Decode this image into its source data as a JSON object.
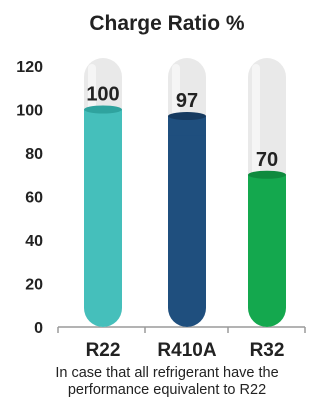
{
  "chart_data": {
    "type": "bar",
    "title": "Charge Ratio %",
    "categories": [
      "R22",
      "R410A",
      "R32"
    ],
    "values": [
      100,
      97,
      70
    ],
    "data_labels": [
      "100",
      "97",
      "70"
    ],
    "colors": [
      "#45bfbb",
      "#1f4f7e",
      "#14a84e"
    ],
    "cap_colors": [
      "#2fa39e",
      "#163a60",
      "#0f8a3e"
    ],
    "tube_color": "#e9e9e9",
    "tube_top_color": "#f6f6f6",
    "ylim": [
      0,
      120
    ],
    "yticks": [
      0,
      20,
      40,
      60,
      80,
      100,
      120
    ],
    "ytick_labels": [
      "0",
      "20",
      "40",
      "60",
      "80",
      "100",
      "120"
    ],
    "xlabel": "",
    "ylabel": "",
    "grid": false,
    "legend": "none"
  },
  "caption": {
    "line1": "In case that all refrigerant have the",
    "line2": "performance equivalent to R22"
  }
}
